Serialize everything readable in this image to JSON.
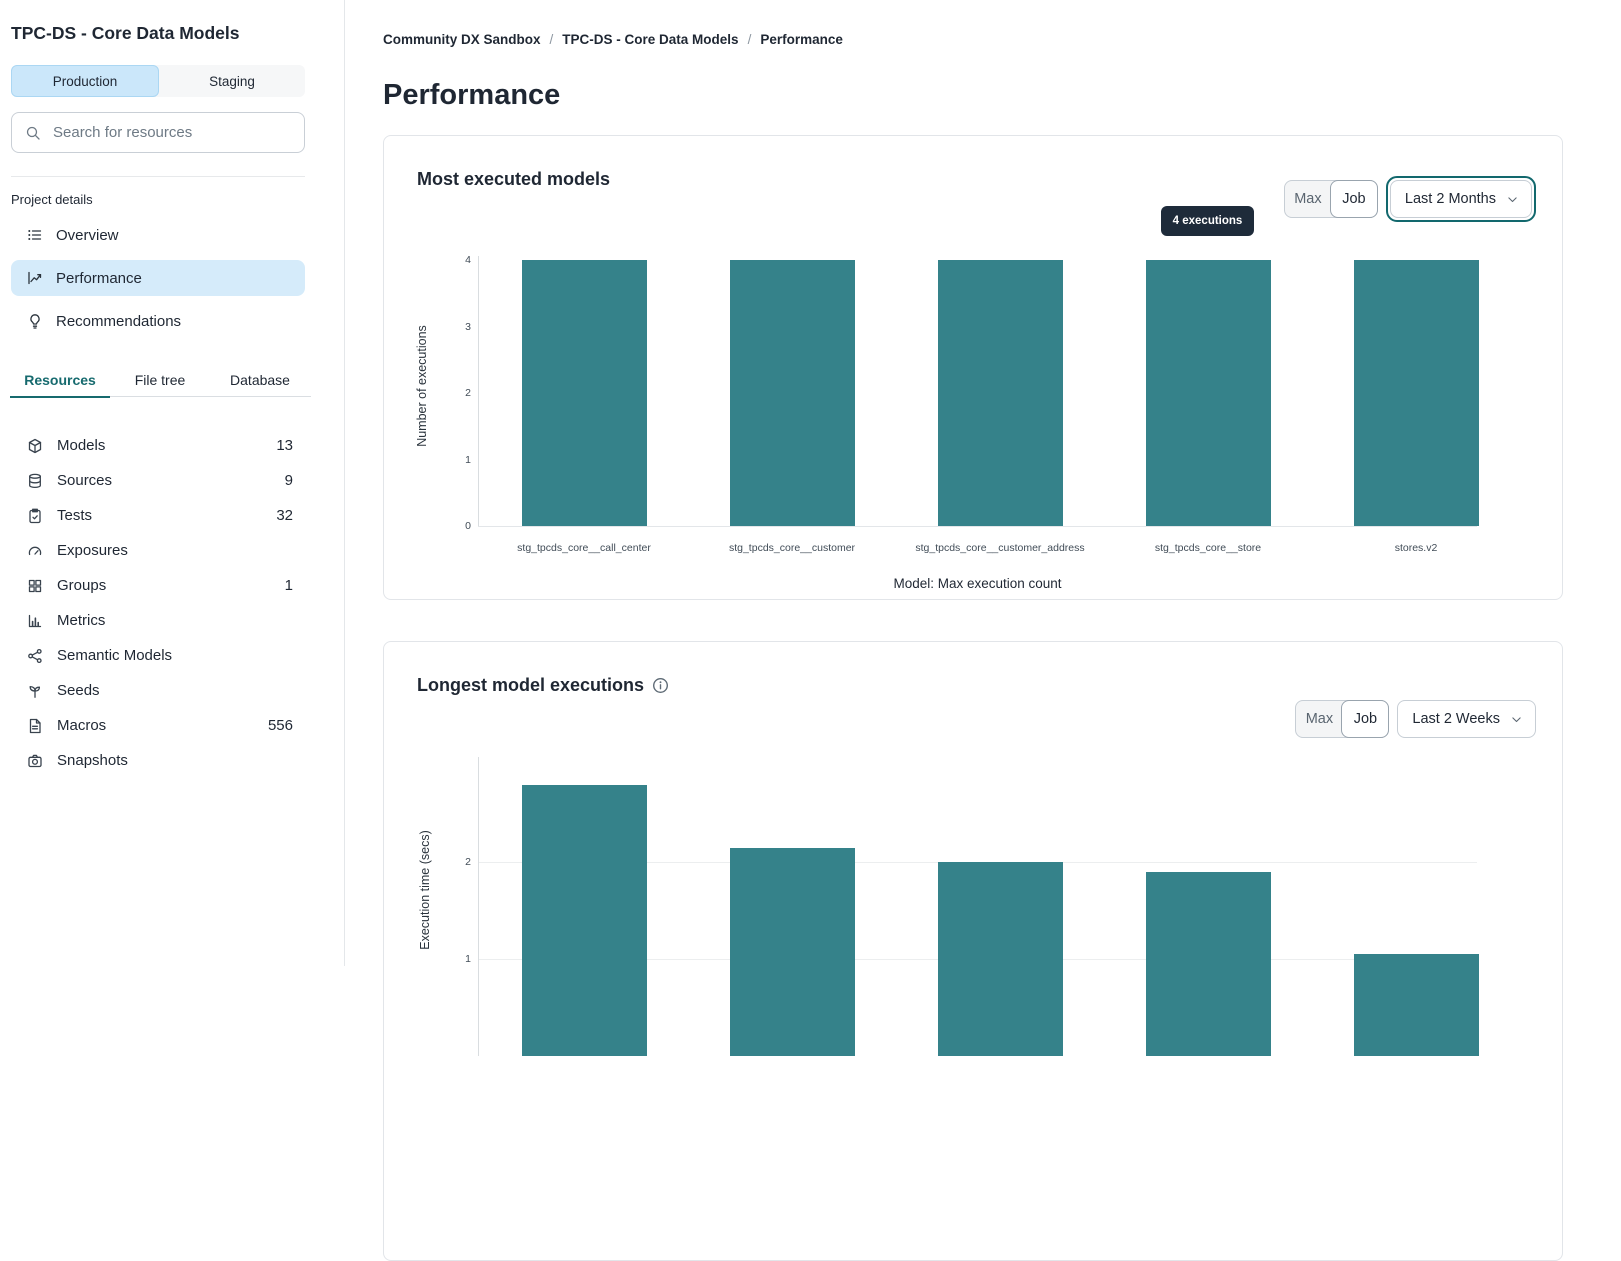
{
  "sidebar": {
    "title": "TPC-DS - Core Data Models",
    "environments": {
      "options": [
        "Production",
        "Staging"
      ],
      "selected": "Production"
    },
    "search": {
      "placeholder": "Search for resources"
    },
    "project_details_label": "Project details",
    "nav": [
      {
        "label": "Overview",
        "icon": "list-icon",
        "selected": false
      },
      {
        "label": "Performance",
        "icon": "trend-icon",
        "selected": true
      },
      {
        "label": "Recommendations",
        "icon": "bulb-icon",
        "selected": false
      }
    ],
    "tabs": [
      {
        "label": "Resources",
        "active": true
      },
      {
        "label": "File tree",
        "active": false
      },
      {
        "label": "Database",
        "active": false
      }
    ],
    "resources": [
      {
        "label": "Models",
        "icon": "cube-icon",
        "count": "13"
      },
      {
        "label": "Sources",
        "icon": "database-icon",
        "count": "9"
      },
      {
        "label": "Tests",
        "icon": "clipboard-icon",
        "count": "32"
      },
      {
        "label": "Exposures",
        "icon": "gauge-icon",
        "count": ""
      },
      {
        "label": "Groups",
        "icon": "grid-icon",
        "count": "1"
      },
      {
        "label": "Metrics",
        "icon": "chart-icon",
        "count": ""
      },
      {
        "label": "Semantic Models",
        "icon": "network-icon",
        "count": ""
      },
      {
        "label": "Seeds",
        "icon": "sprout-icon",
        "count": ""
      },
      {
        "label": "Macros",
        "icon": "file-icon",
        "count": "556"
      },
      {
        "label": "Snapshots",
        "icon": "camera-icon",
        "count": ""
      }
    ]
  },
  "breadcrumb": {
    "items": [
      "Community DX Sandbox",
      "TPC-DS - Core Data Models",
      "Performance"
    ],
    "separator": "/"
  },
  "page_title": "Performance",
  "cards": [
    {
      "title": "Most executed models",
      "has_info_icon": false,
      "view_toggle": {
        "options": [
          "Max",
          "Job"
        ],
        "selected": "Job"
      },
      "time_range": "Last 2 Months",
      "range_focused": true,
      "tooltip": "4 executions"
    },
    {
      "title": "Longest model executions",
      "has_info_icon": true,
      "view_toggle": {
        "options": [
          "Max",
          "Job"
        ],
        "selected": "Job"
      },
      "time_range": "Last 2 Weeks",
      "range_focused": false,
      "tooltip": ""
    }
  ],
  "chart_data": [
    {
      "type": "bar",
      "title": "Most executed models",
      "categories": [
        "stg_tpcds_core__call_center",
        "stg_tpcds_core__customer",
        "stg_tpcds_core__customer_address",
        "stg_tpcds_core__store",
        "stores.v2"
      ],
      "values": [
        4,
        4,
        4,
        4,
        4
      ],
      "xlabel": "Model: Max execution count",
      "ylabel": "Number of executions",
      "ylim": [
        0,
        4
      ],
      "yticks": [
        0,
        1,
        2,
        3,
        4
      ],
      "bar_color": "#35828A",
      "grid": false,
      "legend": false,
      "annotation": "4 executions"
    },
    {
      "type": "bar",
      "title": "Longest model executions",
      "categories": [],
      "values": [
        2.8,
        2.15,
        2.0,
        1.9,
        1.05
      ],
      "xlabel": "",
      "ylabel": "Execution time (secs)",
      "ylim": [
        0,
        3.1
      ],
      "yticks": [
        1,
        2
      ],
      "bar_color": "#35828A",
      "grid": true,
      "legend": false
    }
  ],
  "colors": {
    "accent_teal": "#166A6E",
    "bar_teal": "#35828A",
    "selected_blue_bg": "#D5EBFA",
    "env_selected_bg": "#CBE7FA",
    "tooltip_bg": "#1E2B3A",
    "focus_ring": "#12686D"
  }
}
